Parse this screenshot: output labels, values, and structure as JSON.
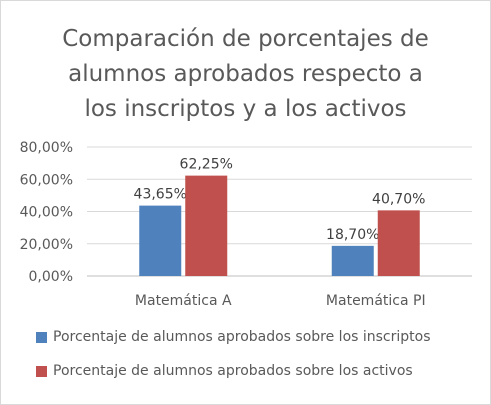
{
  "chart_data": {
    "type": "bar",
    "title_lines": [
      "Comparación de porcentajes de",
      "alumnos aprobados respecto a",
      "los inscriptos y a los activos"
    ],
    "categories": [
      "Matemática A",
      "Matemática PI"
    ],
    "series": [
      {
        "name": "Porcentaje de alumnos aprobados sobre los inscriptos",
        "color": "#4f81bd",
        "values": [
          43.65,
          18.7
        ],
        "labels": [
          "43,65%",
          "18,70%"
        ]
      },
      {
        "name": "Porcentaje de alumnos aprobados sobre los activos",
        "color": "#c0504d",
        "values": [
          62.25,
          40.7
        ],
        "labels": [
          "62,25%",
          "40,70%"
        ]
      }
    ],
    "ylim": [
      0,
      80
    ],
    "yticks": [
      0,
      20,
      40,
      60,
      80
    ],
    "ytick_labels": [
      "0,00%",
      "20,00%",
      "40,00%",
      "60,00%",
      "80,00%"
    ],
    "grid": true,
    "legend": "bottom"
  }
}
